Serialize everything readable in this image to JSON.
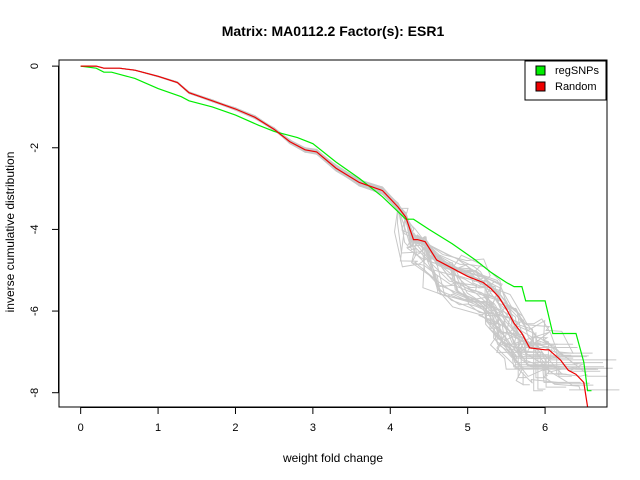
{
  "chart_data": {
    "type": "line",
    "title": "Matrix: MA0112.2 Factor(s): ESR1",
    "xlabel": "weight fold change",
    "ylabel": "inverse cumulative distribution",
    "xlim": [
      -0.28,
      6.8
    ],
    "ylim": [
      -8.35,
      0.15
    ],
    "xticks": [
      "0",
      "1",
      "2",
      "3",
      "4",
      "5",
      "6"
    ],
    "yticks": [
      "0",
      "-2",
      "-4",
      "-6",
      "-8"
    ],
    "grid": false,
    "legend_position": "top-right",
    "legend": [
      {
        "label": "regSNPs",
        "color": "#00ee00"
      },
      {
        "label": "Random",
        "color": "#ee0000"
      }
    ],
    "series": [
      {
        "name": "regSNPs",
        "color": "#00ee00",
        "x": [
          0,
          0.2,
          0.3,
          0.4,
          0.5,
          0.7,
          1.0,
          1.3,
          1.4,
          1.7,
          2.0,
          2.3,
          2.5,
          2.8,
          3.0,
          3.3,
          3.6,
          3.9,
          4.2,
          4.3,
          4.5,
          4.8,
          5.1,
          5.3,
          5.5,
          5.6,
          5.7,
          5.75,
          5.8,
          6.0,
          6.1,
          6.3,
          6.4,
          6.5,
          6.55,
          6.6
        ],
        "y": [
          0,
          -0.05,
          -0.15,
          -0.15,
          -0.2,
          -0.3,
          -0.55,
          -0.75,
          -0.85,
          -1.0,
          -1.2,
          -1.45,
          -1.6,
          -1.75,
          -1.9,
          -2.35,
          -2.75,
          -3.2,
          -3.75,
          -3.75,
          -4.0,
          -4.35,
          -4.75,
          -5.05,
          -5.3,
          -5.4,
          -5.4,
          -5.75,
          -5.75,
          -5.75,
          -6.55,
          -6.55,
          -6.55,
          -7.25,
          -7.95,
          -7.95
        ]
      },
      {
        "name": "Random",
        "color": "#ee0000",
        "x": [
          0,
          0.2,
          0.3,
          0.5,
          0.7,
          1.0,
          1.25,
          1.4,
          1.7,
          2.0,
          2.25,
          2.5,
          2.7,
          2.9,
          3.05,
          3.3,
          3.6,
          3.9,
          4.1,
          4.2,
          4.3,
          4.35,
          4.45,
          4.6,
          4.8,
          5.0,
          5.2,
          5.3,
          5.4,
          5.5,
          5.6,
          5.7,
          5.8,
          6.0,
          6.05,
          6.2,
          6.3,
          6.4,
          6.5,
          6.55
        ],
        "y": [
          0,
          0,
          -0.05,
          -0.05,
          -0.1,
          -0.25,
          -0.4,
          -0.65,
          -0.85,
          -1.05,
          -1.25,
          -1.55,
          -1.85,
          -2.05,
          -2.1,
          -2.5,
          -2.85,
          -3.05,
          -3.45,
          -3.7,
          -4.25,
          -4.25,
          -4.3,
          -4.75,
          -4.95,
          -5.15,
          -5.3,
          -5.45,
          -5.65,
          -5.95,
          -6.3,
          -6.55,
          -6.9,
          -6.95,
          -6.95,
          -7.2,
          -7.45,
          -7.55,
          -7.75,
          -8.35
        ]
      }
    ]
  }
}
